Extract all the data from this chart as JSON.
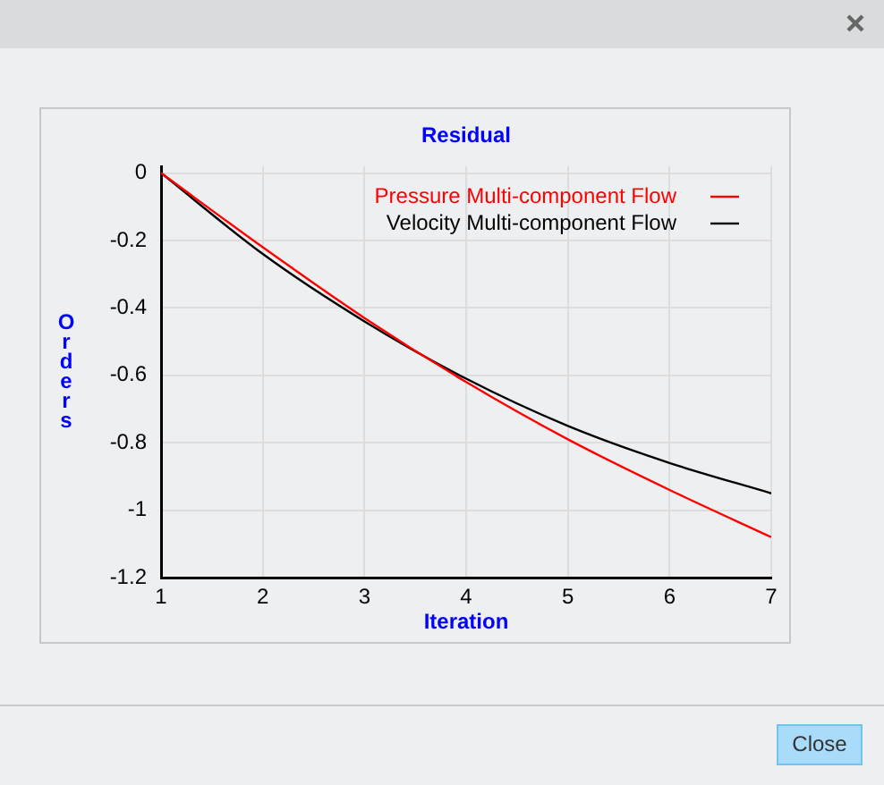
{
  "chart_data": {
    "type": "line",
    "title": "Residual",
    "xlabel": "Iteration",
    "ylabel": "Orders",
    "x": [
      1,
      2,
      3,
      4,
      5,
      6,
      7
    ],
    "xlim": [
      1,
      7
    ],
    "xticks": [
      1,
      2,
      3,
      4,
      5,
      6,
      7
    ],
    "ylim": [
      -1.2,
      0.02
    ],
    "yticks": [
      -1.2,
      -1,
      -0.8,
      -0.6,
      -0.4,
      -0.2,
      0
    ],
    "series": [
      {
        "name": "Pressure Multi-component Flow",
        "color": "#ff0000",
        "values": [
          0,
          -0.22,
          -0.43,
          -0.62,
          -0.79,
          -0.94,
          -1.08
        ]
      },
      {
        "name": "Velocity Multi-component Flow",
        "color": "#000000",
        "values": [
          0,
          -0.24,
          -0.44,
          -0.61,
          -0.75,
          -0.86,
          -0.95
        ]
      }
    ],
    "annotations": [
      "Close"
    ],
    "grid": true,
    "legend": "top right",
    "marker": "none",
    "line_style": "solid"
  }
}
